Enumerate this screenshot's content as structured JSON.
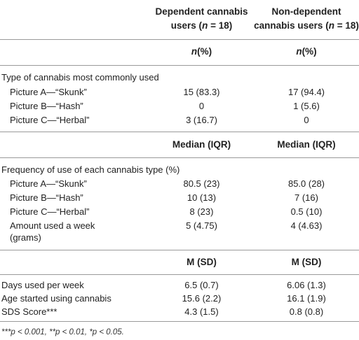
{
  "header": {
    "col1_line1": "Dependent cannabis",
    "col1_line2_pre": "users (",
    "col1_line2_n": "n",
    "col1_line2_post": " = 18)",
    "col2_line1": "Non-dependent",
    "col2_line2_pre": "cannabis users (",
    "col2_line2_n": "n",
    "col2_line2_post": " = 18)",
    "stat_n": "n",
    "stat_pct": "(%)"
  },
  "section1": {
    "title": "Type of cannabis most commonly used",
    "rows": [
      {
        "label": "Picture A—“Skunk”",
        "dep": "15 (83.3)",
        "nondep": "17 (94.4)"
      },
      {
        "label": "Picture B—“Hash”",
        "dep": "0",
        "nondep": "1 (5.6)"
      },
      {
        "label": "Picture C—“Herbal”",
        "dep": "3 (16.7)",
        "nondep": "0"
      }
    ]
  },
  "section2": {
    "stat1": "Median (IQR)",
    "stat2": "Median (IQR)",
    "title": "Frequency of use of each cannabis type (%)",
    "rows": [
      {
        "label": "Picture A—“Skunk”",
        "dep": "80.5 (23)",
        "nondep": "85.0 (28)"
      },
      {
        "label": "Picture B—“Hash”",
        "dep": "10 (13)",
        "nondep": "7 (16)"
      },
      {
        "label": "Picture C—“Herbal”",
        "dep": "8 (23)",
        "nondep": "0.5 (10)"
      }
    ],
    "amount_label_1": "Amount used a week",
    "amount_label_2": "(grams)",
    "amount_dep": "5 (4.75)",
    "amount_nondep": "4 (4.63)"
  },
  "section3": {
    "stat1": "M (SD)",
    "stat2": "M (SD)",
    "rows": [
      {
        "label": "Days used per week",
        "dep": "6.5 (0.7)",
        "nondep": "6.06 (1.3)"
      },
      {
        "label": "Age started using cannabis",
        "dep": "15.6 (2.2)",
        "nondep": "16.1 (1.9)"
      },
      {
        "label": "SDS Score***",
        "dep": "4.3 (1.5)",
        "nondep": "0.8 (0.8)"
      }
    ]
  },
  "footnote": "***p < 0.001, **p < 0.01, *p < 0.05."
}
